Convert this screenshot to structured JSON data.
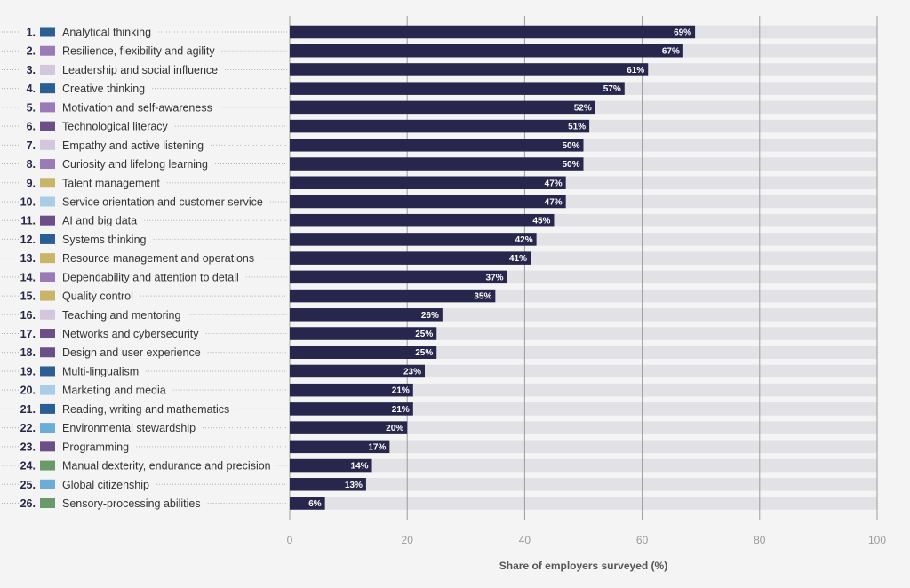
{
  "chart_data": {
    "type": "bar",
    "orientation": "horizontal",
    "xlabel": "Share of employers surveyed (%)",
    "xlim": [
      0,
      100
    ],
    "xticks": [
      0,
      20,
      40,
      60,
      80,
      100
    ],
    "grid": true,
    "value_suffix": "%",
    "colors": {
      "bar": "#27274d",
      "track": "#e2e2e6",
      "gridline": "#9c9c9c",
      "leader": "#b0b0b0"
    },
    "categories": [
      {
        "rank": "1.",
        "label": "Analytical thinking",
        "value": 69,
        "swatch": "#2b5f94"
      },
      {
        "rank": "2.",
        "label": "Resilience, flexibility and agility",
        "value": 67,
        "swatch": "#9b7ab8"
      },
      {
        "rank": "3.",
        "label": "Leadership and social influence",
        "value": 61,
        "swatch": "#d3c6dd"
      },
      {
        "rank": "4.",
        "label": "Creative thinking",
        "value": 57,
        "swatch": "#2b5f94"
      },
      {
        "rank": "5.",
        "label": "Motivation and self-awareness",
        "value": 52,
        "swatch": "#9b7ab8"
      },
      {
        "rank": "6.",
        "label": "Technological literacy",
        "value": 51,
        "swatch": "#6b4f86"
      },
      {
        "rank": "7.",
        "label": "Empathy and active listening",
        "value": 50,
        "swatch": "#d3c6dd"
      },
      {
        "rank": "8.",
        "label": "Curiosity and lifelong learning",
        "value": 50,
        "swatch": "#9b7ab8"
      },
      {
        "rank": "9.",
        "label": "Talent management",
        "value": 47,
        "swatch": "#c9b46a"
      },
      {
        "rank": "10.",
        "label": "Service orientation and customer service",
        "value": 47,
        "swatch": "#a9cde8"
      },
      {
        "rank": "11.",
        "label": "AI and big data",
        "value": 45,
        "swatch": "#6b4f86"
      },
      {
        "rank": "12.",
        "label": "Systems thinking",
        "value": 42,
        "swatch": "#2b5f94"
      },
      {
        "rank": "13.",
        "label": "Resource management and operations",
        "value": 41,
        "swatch": "#c9b46a"
      },
      {
        "rank": "14.",
        "label": "Dependability and attention to detail",
        "value": 37,
        "swatch": "#9b7ab8"
      },
      {
        "rank": "15.",
        "label": "Quality control",
        "value": 35,
        "swatch": "#c9b46a"
      },
      {
        "rank": "16.",
        "label": "Teaching and mentoring",
        "value": 26,
        "swatch": "#d3c6dd"
      },
      {
        "rank": "17.",
        "label": "Networks and cybersecurity",
        "value": 25,
        "swatch": "#6b4f86"
      },
      {
        "rank": "18.",
        "label": "Design and user experience",
        "value": 25,
        "swatch": "#6b4f86"
      },
      {
        "rank": "19.",
        "label": "Multi-lingualism",
        "value": 23,
        "swatch": "#2b5f94"
      },
      {
        "rank": "20.",
        "label": "Marketing and media",
        "value": 21,
        "swatch": "#a9cde8"
      },
      {
        "rank": "21.",
        "label": "Reading, writing and mathematics",
        "value": 21,
        "swatch": "#2b5f94"
      },
      {
        "rank": "22.",
        "label": "Environmental stewardship",
        "value": 20,
        "swatch": "#6aaed8"
      },
      {
        "rank": "23.",
        "label": "Programming",
        "value": 17,
        "swatch": "#6b4f86"
      },
      {
        "rank": "24.",
        "label": "Manual dexterity, endurance and precision",
        "value": 14,
        "swatch": "#6a9a6a"
      },
      {
        "rank": "25.",
        "label": "Global citizenship",
        "value": 13,
        "swatch": "#6aaed8"
      },
      {
        "rank": "26.",
        "label": "Sensory-processing abilities",
        "value": 6,
        "swatch": "#6a9a6a"
      }
    ]
  }
}
